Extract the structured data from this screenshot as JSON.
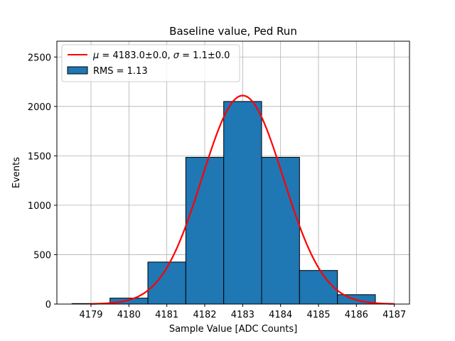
{
  "chart_data": {
    "type": "bar",
    "title": "Baseline value, Ped Run",
    "xlabel": "Sample Value [ADC Counts]",
    "ylabel": "Events",
    "xlim": [
      4178.1,
      4187.4
    ],
    "ylim": [
      0,
      2660
    ],
    "xticks": [
      4179,
      4180,
      4181,
      4182,
      4183,
      4184,
      4185,
      4186,
      4187
    ],
    "yticks": [
      0,
      500,
      1000,
      1500,
      2000,
      2500
    ],
    "grid": true,
    "legend_position": "top-left",
    "histogram": {
      "name": "RMS = 1.13",
      "color": "#1f77b4",
      "edgecolor": "#000000",
      "bin_edges": [
        4178.5,
        4179.5,
        4180.5,
        4181.5,
        4182.5,
        4183.5,
        4184.5,
        4185.5,
        4186.5
      ],
      "counts": [
        5,
        60,
        425,
        1485,
        2050,
        1485,
        340,
        95
      ]
    },
    "fit": {
      "name": "$\\mu = 4183.0\\pm0.0$, $\\sigma = 1.1\\pm0.0$",
      "label_parts": {
        "mu_symbol": "μ",
        "mu_value": " = 4183.0±0.0, ",
        "sigma_symbol": "σ",
        "sigma_value": " = 1.1±0.0"
      },
      "type": "gaussian",
      "mu": 4183.0,
      "sigma": 1.07,
      "amplitude": 2110,
      "x_range": [
        4179,
        4187
      ],
      "color": "#ff0000"
    }
  }
}
